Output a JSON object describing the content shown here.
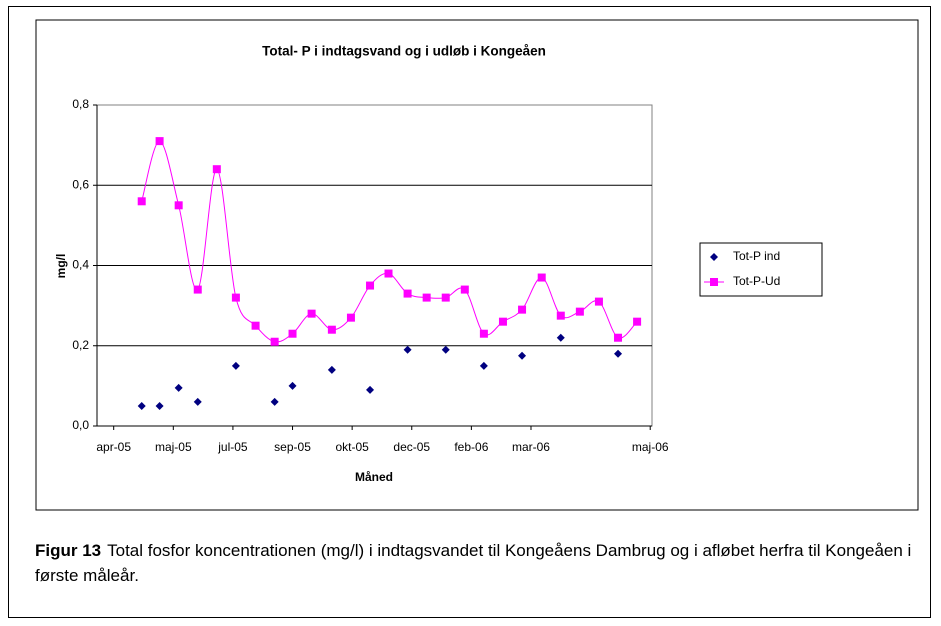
{
  "chart_data": {
    "type": "line",
    "title": "Total- P i indtagsvand og i  udløb i Kongeåen",
    "x_label": "Måned",
    "y_label": "mg/l",
    "xlim": [
      -0.28,
      9.03
    ],
    "xticks": [
      {
        "value": 0,
        "label": "apr-05"
      },
      {
        "value": 1,
        "label": "maj-05"
      },
      {
        "value": 2,
        "label": "jul-05"
      },
      {
        "value": 3,
        "label": "sep-05"
      },
      {
        "value": 4,
        "label": "okt-05"
      },
      {
        "value": 5,
        "label": "dec-05"
      },
      {
        "value": 6,
        "label": "feb-06"
      },
      {
        "value": 7,
        "label": "mar-06"
      },
      {
        "value": 9,
        "label": "maj-06"
      }
    ],
    "ylim": [
      0,
      0.8
    ],
    "yticks": [
      {
        "value": 0,
        "label": "0,0"
      },
      {
        "value": 0.2,
        "label": "0,2"
      },
      {
        "value": 0.4,
        "label": "0,4"
      },
      {
        "value": 0.6,
        "label": "0,6"
      },
      {
        "value": 0.8,
        "label": "0,8"
      }
    ],
    "grid": true,
    "series": [
      {
        "name": "Tot-P ind",
        "color": "#000080",
        "marker": "diamond",
        "line": false,
        "x": [
          0.47,
          0.77,
          1.09,
          1.41,
          2.05,
          2.7,
          3.0,
          3.66,
          4.3,
          4.93,
          5.57,
          6.21,
          6.85,
          7.5,
          8.46
        ],
        "values": [
          0.05,
          0.05,
          0.095,
          0.06,
          0.15,
          0.06,
          0.1,
          0.14,
          0.09,
          0.19,
          0.19,
          0.15,
          0.175,
          0.22,
          0.18
        ]
      },
      {
        "name": "Tot-P-Ud",
        "color": "#ff00ff",
        "marker": "square",
        "line": true,
        "x": [
          0.47,
          0.77,
          1.09,
          1.41,
          1.73,
          2.05,
          2.38,
          2.7,
          3.0,
          3.32,
          3.66,
          3.98,
          4.3,
          4.61,
          4.93,
          5.25,
          5.57,
          5.89,
          6.21,
          6.53,
          6.85,
          7.18,
          7.5,
          7.82,
          8.14,
          8.46,
          8.78
        ],
        "values": [
          0.56,
          0.71,
          0.55,
          0.34,
          0.64,
          0.32,
          0.25,
          0.21,
          0.23,
          0.28,
          0.24,
          0.27,
          0.35,
          0.38,
          0.33,
          0.32,
          0.32,
          0.34,
          0.23,
          0.26,
          0.29,
          0.37,
          0.275,
          0.285,
          0.31,
          0.22,
          0.26
        ]
      }
    ]
  },
  "caption": {
    "label": "Figur 13",
    "text": "Total fosfor koncentrationen (mg/l) i indtagsvandet til Kongeåens Dambrug og i afløbet herfra til Kongeåen i første måleår."
  }
}
